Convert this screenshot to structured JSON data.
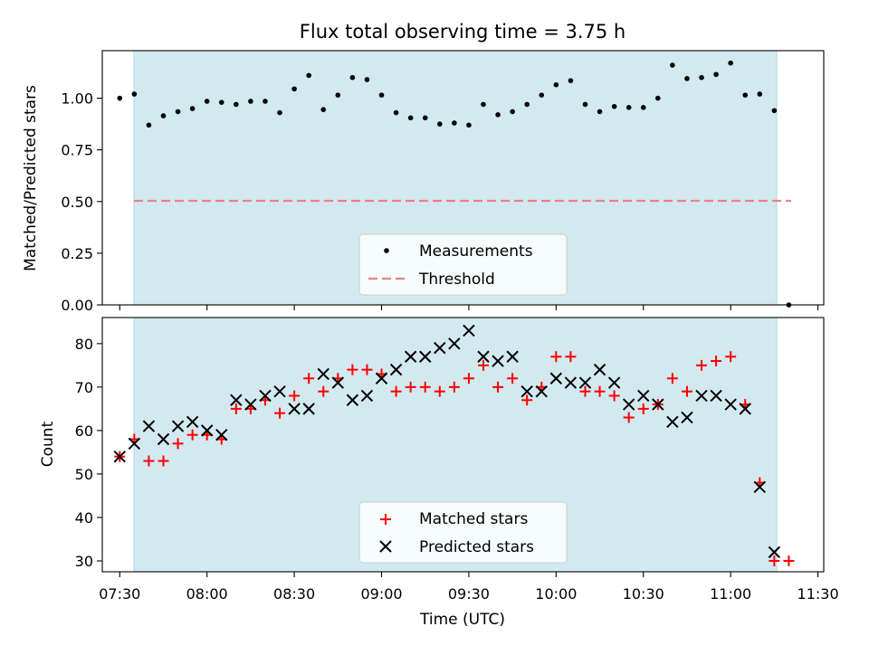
{
  "chart_data": [
    {
      "type": "scatter",
      "title": "Flux total observing time = 3.75 h",
      "ylabel": "Matched/Predicted stars",
      "xlabel": "",
      "ylim": [
        0,
        1.23
      ],
      "yticks": [
        "0.00",
        "0.25",
        "0.50",
        "0.75",
        "1.00"
      ],
      "yticks_values": [
        0,
        0.25,
        0.5,
        0.75,
        1.0
      ],
      "grid": false,
      "legend_position": "bottom-center",
      "shaded_interval": [
        "07:30",
        "11:15"
      ],
      "threshold": 0.5,
      "threshold_x": [
        "07:30",
        "11:20"
      ],
      "series": [
        {
          "name": "Measurements",
          "x": [
            "07:30",
            "07:35",
            "07:40",
            "07:45",
            "07:50",
            "07:55",
            "08:00",
            "08:05",
            "08:10",
            "08:15",
            "08:20",
            "08:25",
            "08:30",
            "08:35",
            "08:40",
            "08:45",
            "08:50",
            "08:55",
            "09:00",
            "09:05",
            "09:10",
            "09:15",
            "09:20",
            "09:25",
            "09:30",
            "09:35",
            "09:40",
            "09:45",
            "09:50",
            "09:55",
            "10:00",
            "10:05",
            "10:10",
            "10:15",
            "10:20",
            "10:25",
            "10:30",
            "10:35",
            "10:40",
            "10:45",
            "10:50",
            "10:55",
            "11:00",
            "11:05",
            "11:10",
            "11:15",
            "11:20"
          ],
          "y": [
            1.0,
            1.02,
            0.87,
            0.915,
            0.935,
            0.95,
            0.985,
            0.98,
            0.97,
            0.985,
            0.985,
            0.93,
            1.045,
            1.11,
            0.945,
            1.015,
            1.1,
            1.09,
            1.015,
            0.93,
            0.905,
            0.905,
            0.875,
            0.88,
            0.87,
            0.97,
            0.92,
            0.935,
            0.97,
            1.015,
            1.065,
            1.085,
            0.97,
            0.935,
            0.96,
            0.955,
            0.955,
            1.0,
            1.16,
            1.095,
            1.1,
            1.115,
            1.17,
            1.015,
            1.02,
            0.94,
            0.0
          ]
        },
        {
          "name": "Threshold",
          "style": "dashed",
          "y": 0.5
        }
      ]
    },
    {
      "type": "scatter",
      "title": "",
      "xlabel": "Time (UTC)",
      "ylabel": "Count",
      "ylim": [
        27.5,
        86
      ],
      "yticks": [
        "30",
        "40",
        "50",
        "60",
        "70",
        "80"
      ],
      "yticks_values": [
        30,
        40,
        50,
        60,
        70,
        80
      ],
      "xlim": [
        "07:24",
        "11:32"
      ],
      "xticks": [
        "07:30",
        "08:00",
        "08:30",
        "09:00",
        "09:30",
        "10:00",
        "10:30",
        "11:00",
        "11:30"
      ],
      "grid": false,
      "legend_position": "bottom-center",
      "shaded_interval": [
        "07:30",
        "11:15"
      ],
      "series": [
        {
          "name": "Matched stars",
          "marker": "+",
          "x": [
            "07:30",
            "07:35",
            "07:40",
            "07:45",
            "07:50",
            "07:55",
            "08:00",
            "08:05",
            "08:10",
            "08:15",
            "08:20",
            "08:25",
            "08:30",
            "08:35",
            "08:40",
            "08:45",
            "08:50",
            "08:55",
            "09:00",
            "09:05",
            "09:10",
            "09:15",
            "09:20",
            "09:25",
            "09:30",
            "09:35",
            "09:40",
            "09:45",
            "09:50",
            "09:55",
            "10:00",
            "10:05",
            "10:10",
            "10:15",
            "10:20",
            "10:25",
            "10:30",
            "10:35",
            "10:40",
            "10:45",
            "10:50",
            "10:55",
            "11:00",
            "11:05",
            "11:10",
            "11:15",
            "11:20"
          ],
          "y": [
            54,
            58,
            53,
            53,
            57,
            59,
            59,
            58,
            65,
            65,
            67,
            64,
            68,
            72,
            69,
            72,
            74,
            74,
            73,
            69,
            70,
            70,
            69,
            70,
            72,
            75,
            70,
            72,
            67,
            70,
            77,
            77,
            69,
            69,
            68,
            63,
            65,
            66,
            72,
            69,
            75,
            76,
            77,
            66,
            48,
            30,
            30
          ]
        },
        {
          "name": "Predicted stars",
          "marker": "x",
          "x": [
            "07:30",
            "07:35",
            "07:40",
            "07:45",
            "07:50",
            "07:55",
            "08:00",
            "08:05",
            "08:10",
            "08:15",
            "08:20",
            "08:25",
            "08:30",
            "08:35",
            "08:40",
            "08:45",
            "08:50",
            "08:55",
            "09:00",
            "09:05",
            "09:10",
            "09:15",
            "09:20",
            "09:25",
            "09:30",
            "09:35",
            "09:40",
            "09:45",
            "09:50",
            "09:55",
            "10:00",
            "10:05",
            "10:10",
            "10:15",
            "10:20",
            "10:25",
            "10:30",
            "10:35",
            "10:40",
            "10:45",
            "10:50",
            "10:55",
            "11:00",
            "11:05",
            "11:10",
            "11:15"
          ],
          "y": [
            54,
            57,
            61,
            58,
            61,
            62,
            60,
            59,
            67,
            66,
            68,
            69,
            65,
            65,
            73,
            71,
            67,
            68,
            72,
            74,
            77,
            77,
            79,
            80,
            83,
            77,
            76,
            77,
            69,
            69,
            72,
            71,
            71,
            74,
            71,
            66,
            68,
            66,
            62,
            63,
            68,
            68,
            66,
            65,
            47,
            32
          ]
        }
      ]
    }
  ],
  "colors": {
    "shade": "#d3e9f0",
    "shade_edge": "#add8e6",
    "threshold": "#f08080",
    "measurement": "#000000",
    "matched": "#ff0000",
    "predicted": "#000000"
  }
}
